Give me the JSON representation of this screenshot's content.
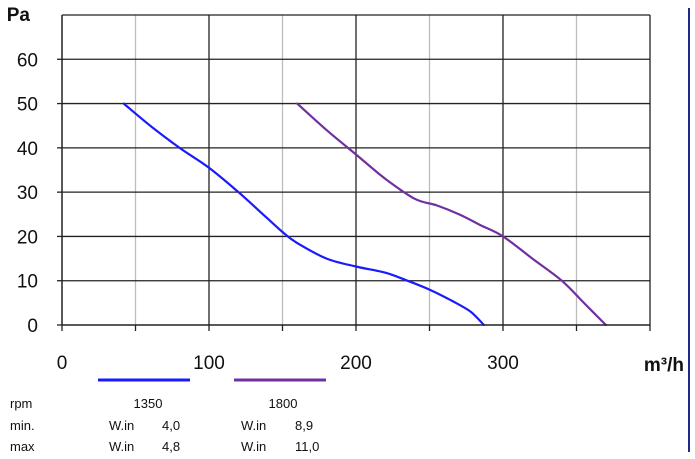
{
  "chart_data": {
    "type": "line",
    "x_unit": "m³/h",
    "y_unit": "Pa",
    "xlim": [
      0,
      400
    ],
    "ylim": [
      0,
      70
    ],
    "x_ticks": [
      "0",
      "100",
      "200",
      "300"
    ],
    "y_ticks": [
      "0",
      "10",
      "20",
      "30",
      "40",
      "50",
      "60"
    ],
    "grid": true,
    "series": [
      {
        "name": "1350",
        "color": "#1a1aff",
        "points": [
          [
            42,
            50
          ],
          [
            60,
            45
          ],
          [
            80,
            40
          ],
          [
            100,
            35.5
          ],
          [
            120,
            30
          ],
          [
            140,
            24
          ],
          [
            150,
            21
          ],
          [
            160,
            18.5
          ],
          [
            180,
            15
          ],
          [
            200,
            13.2
          ],
          [
            220,
            11.8
          ],
          [
            235,
            10
          ],
          [
            250,
            8
          ],
          [
            265,
            5.5
          ],
          [
            278,
            3
          ],
          [
            287,
            0
          ]
        ]
      },
      {
        "name": "1800",
        "color": "#7030a0",
        "points": [
          [
            160,
            50
          ],
          [
            180,
            44
          ],
          [
            200,
            38.5
          ],
          [
            220,
            33
          ],
          [
            240,
            28.5
          ],
          [
            255,
            27
          ],
          [
            270,
            25
          ],
          [
            285,
            22.5
          ],
          [
            300,
            20
          ],
          [
            320,
            15
          ],
          [
            340,
            10
          ],
          [
            355,
            5
          ],
          [
            370,
            0
          ]
        ]
      }
    ]
  },
  "spec_table": {
    "row_labels": [
      "rpm",
      "min.",
      "max"
    ],
    "columns": [
      {
        "rpm": "1350",
        "min_label": "W.in",
        "min_value": "4,0",
        "max_label": "W.in",
        "max_value": "4,8"
      },
      {
        "rpm": "1800",
        "min_label": "W.in",
        "min_value": "8,9",
        "max_label": "W.in",
        "max_value": "11,0"
      }
    ]
  }
}
